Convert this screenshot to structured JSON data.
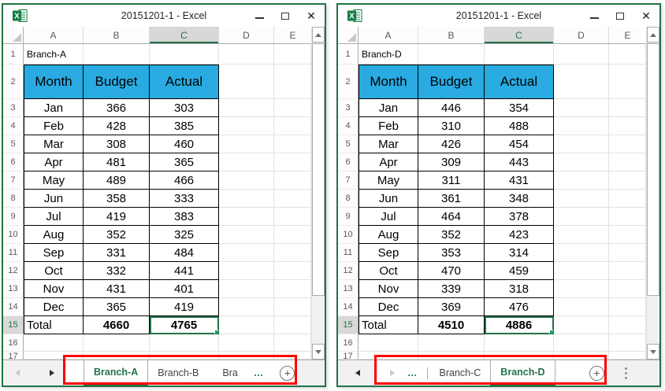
{
  "colors": {
    "window_border_green": "#217346",
    "accent_green": "#217346",
    "table_header_fill": "#29ABE2",
    "annotation_red": "#FF0000",
    "selected_header_bg": "#D8D8D8",
    "fill_handle_green": "#21A366"
  },
  "icons": {
    "app_icon": "excel-logo",
    "minimize": "–",
    "maximize": "▢",
    "close": "✕",
    "select_all_corner": "triangle",
    "scroll_up": "▲",
    "scroll_down": "▼",
    "nav_left": "◄",
    "nav_right": "►",
    "hidden_sheets_ellipsis": "…",
    "add_sheet": "+",
    "more_dots": "⋮"
  },
  "windows": [
    {
      "title": "20151201-1 - Excel",
      "column_headers": [
        "A",
        "B",
        "C",
        "D",
        "E"
      ],
      "selected_column": "C",
      "selected_row": "15",
      "row_numbers": [
        "1",
        "2",
        "3",
        "4",
        "5",
        "6",
        "7",
        "8",
        "9",
        "10",
        "11",
        "12",
        "13",
        "14",
        "15",
        "16",
        "17"
      ],
      "cell_a1": "Branch-A",
      "table": {
        "headers": [
          "Month",
          "Budget",
          "Actual"
        ],
        "rows": [
          [
            "Jan",
            "366",
            "303"
          ],
          [
            "Feb",
            "428",
            "385"
          ],
          [
            "Mar",
            "308",
            "460"
          ],
          [
            "Apr",
            "481",
            "365"
          ],
          [
            "May",
            "489",
            "466"
          ],
          [
            "Jun",
            "358",
            "333"
          ],
          [
            "Jul",
            "419",
            "383"
          ],
          [
            "Aug",
            "352",
            "325"
          ],
          [
            "Sep",
            "331",
            "484"
          ],
          [
            "Oct",
            "332",
            "441"
          ],
          [
            "Nov",
            "431",
            "401"
          ],
          [
            "Dec",
            "365",
            "419"
          ]
        ],
        "total_row": [
          "Total",
          "4660",
          "4765"
        ]
      },
      "tab_strip": {
        "before_box": [
          {
            "type": "nav-left",
            "enabled": false
          },
          {
            "type": "nav-right",
            "enabled": true
          }
        ],
        "in_box": [
          {
            "type": "tab",
            "label": "Branch-A",
            "active": true
          },
          {
            "type": "tab",
            "label": "Branch-B",
            "active": false
          },
          {
            "type": "sep"
          },
          {
            "type": "tab",
            "label": "Bra",
            "active": false,
            "truncated": true
          },
          {
            "type": "ellipsis",
            "label": "…"
          },
          {
            "type": "add",
            "label": "+"
          }
        ],
        "after_box": []
      }
    },
    {
      "title": "20151201-1 - Excel",
      "column_headers": [
        "A",
        "B",
        "C",
        "D",
        "E"
      ],
      "selected_column": "C",
      "selected_row": "15",
      "row_numbers": [
        "1",
        "2",
        "3",
        "4",
        "5",
        "6",
        "7",
        "8",
        "9",
        "10",
        "11",
        "12",
        "13",
        "14",
        "15",
        "16",
        "17"
      ],
      "cell_a1": "Branch-D",
      "table": {
        "headers": [
          "Month",
          "Budget",
          "Actual"
        ],
        "rows": [
          [
            "Jan",
            "446",
            "354"
          ],
          [
            "Feb",
            "310",
            "488"
          ],
          [
            "Mar",
            "426",
            "454"
          ],
          [
            "Apr",
            "309",
            "443"
          ],
          [
            "May",
            "311",
            "431"
          ],
          [
            "Jun",
            "361",
            "348"
          ],
          [
            "Jul",
            "464",
            "378"
          ],
          [
            "Aug",
            "352",
            "423"
          ],
          [
            "Sep",
            "353",
            "314"
          ],
          [
            "Oct",
            "470",
            "459"
          ],
          [
            "Nov",
            "339",
            "318"
          ],
          [
            "Dec",
            "369",
            "476"
          ]
        ],
        "total_row": [
          "Total",
          "4510",
          "4886"
        ]
      },
      "tab_strip": {
        "before_box": [
          {
            "type": "nav-left",
            "enabled": true
          }
        ],
        "in_box": [
          {
            "type": "nav-right",
            "enabled": false
          },
          {
            "type": "ellipsis",
            "label": "…"
          },
          {
            "type": "sep"
          },
          {
            "type": "tab",
            "label": "Branch-C",
            "active": false
          },
          {
            "type": "tab",
            "label": "Branch-D",
            "active": true
          },
          {
            "type": "spacer"
          },
          {
            "type": "add",
            "label": "+"
          }
        ],
        "after_box": [
          {
            "type": "more-dots"
          }
        ]
      }
    }
  ]
}
